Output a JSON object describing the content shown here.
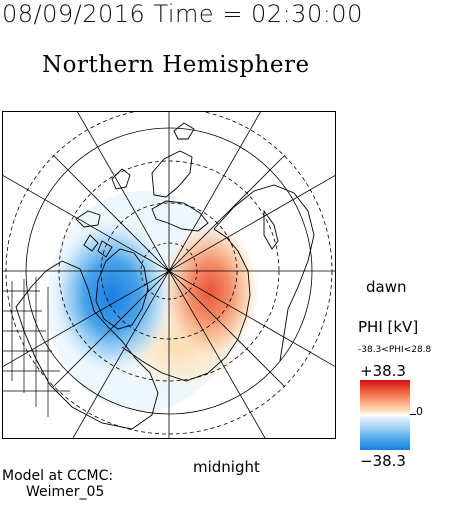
{
  "header": {
    "datetime": "08/09/2016 Time = 02:30:00",
    "title": "Northern Hemisphere"
  },
  "map": {
    "labels": {
      "dawn": "dawn",
      "midnight": "midnight"
    },
    "potential_regions": [
      {
        "sign": "negative",
        "color": "#1a7de0"
      },
      {
        "sign": "positive",
        "color": "#e8553a"
      },
      {
        "sign": "weak-positive",
        "color": "#ffe5b0"
      }
    ]
  },
  "colorbar": {
    "title": "PHI [kV]",
    "range_text": "-38.3<PHI<28.8",
    "max_label": "+38.3",
    "min_label": "−38.3",
    "zero_label": "0",
    "colors": {
      "top": "#cc1111",
      "middle": "#ffffff",
      "bottom": "#1a7de0"
    }
  },
  "model": {
    "line1": "Model at CCMC:",
    "line2": "Weimer_05"
  }
}
